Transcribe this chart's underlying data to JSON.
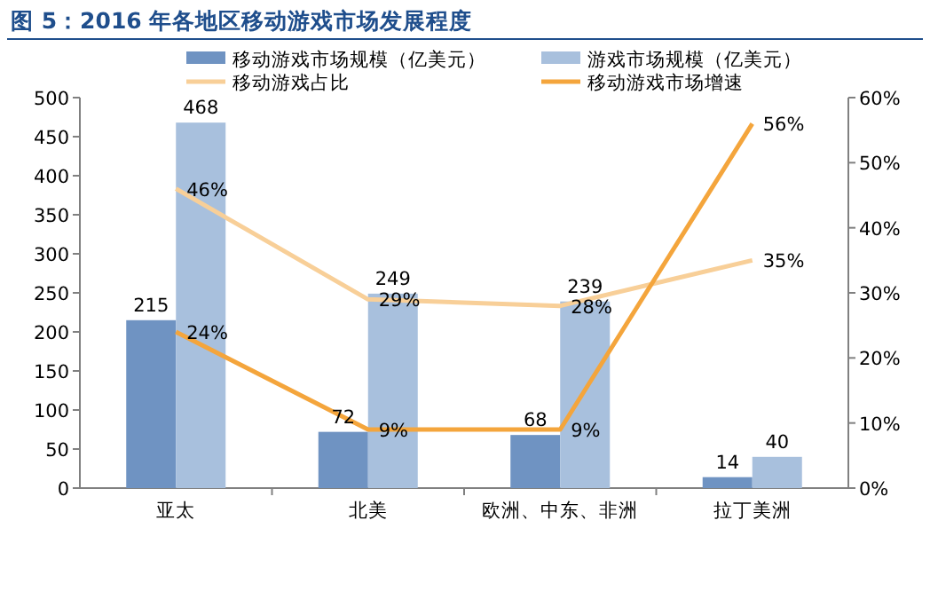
{
  "chart_data": {
    "type": "bar",
    "title": "图 5：2016 年各地区移动游戏市场发展程度",
    "categories": [
      "亚太",
      "北美",
      "欧洲、中东、非洲",
      "拉丁美洲"
    ],
    "series": [
      {
        "name": "移动游戏市场规模（亿美元）",
        "color": "#6f93c2",
        "values": [
          215,
          72,
          68,
          14
        ],
        "value_labels": [
          "215",
          "72",
          "68",
          "14"
        ]
      },
      {
        "name": "游戏市场规模（亿美元）",
        "color": "#a8c0dd",
        "values": [
          468,
          249,
          239,
          40
        ],
        "value_labels": [
          "468",
          "249",
          "239",
          "40"
        ]
      },
      {
        "name": "移动游戏占比",
        "type": "line",
        "axis": "y2",
        "color": "#f8cf98",
        "values": [
          46,
          29,
          28,
          35
        ],
        "value_labels": [
          "46%",
          "29%",
          "28%",
          "35%"
        ]
      },
      {
        "name": "移动游戏市场增速",
        "type": "line",
        "axis": "y2",
        "color": "#f4a53c",
        "values": [
          24,
          9,
          9,
          56
        ],
        "value_labels": [
          "24%",
          "9%",
          "9%",
          "56%"
        ]
      }
    ],
    "ylim": [
      0,
      500
    ],
    "yticks": [
      0,
      50,
      100,
      150,
      200,
      250,
      300,
      350,
      400,
      450,
      500
    ],
    "y2lim": [
      0,
      60
    ],
    "y2ticks": [
      {
        "value": 0,
        "label": "0%"
      },
      {
        "value": 10,
        "label": "10%"
      },
      {
        "value": 20,
        "label": "20%"
      },
      {
        "value": 30,
        "label": "30%"
      },
      {
        "value": 40,
        "label": "40%"
      },
      {
        "value": 50,
        "label": "50%"
      },
      {
        "value": 60,
        "label": "60%"
      }
    ],
    "legend": "top",
    "grid": false
  }
}
